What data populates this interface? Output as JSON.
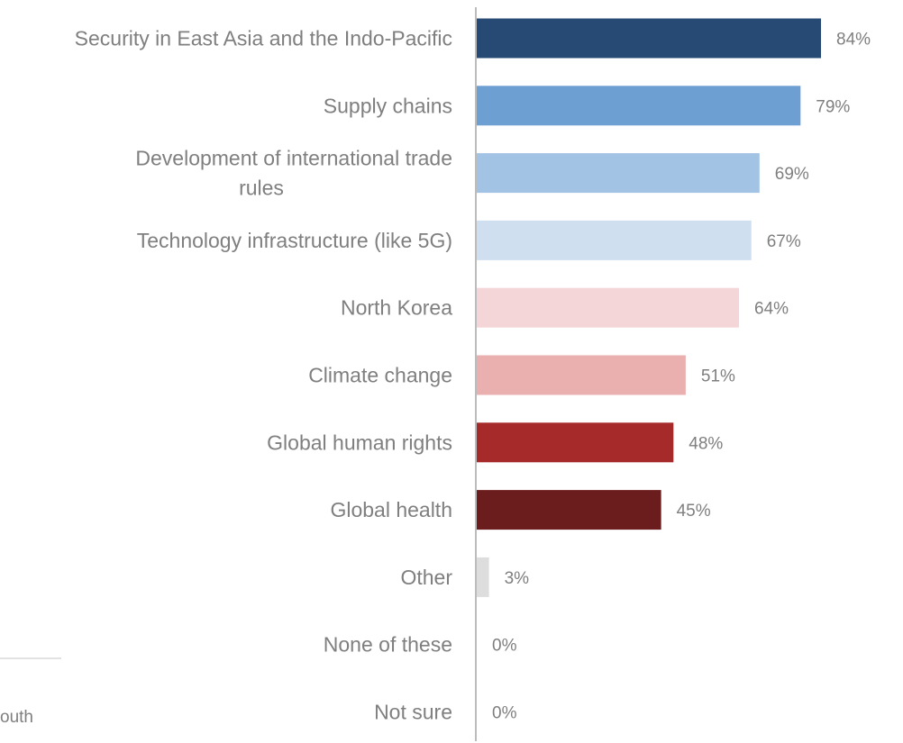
{
  "chart_data": {
    "type": "bar",
    "orientation": "horizontal",
    "title": "",
    "xlabel": "",
    "ylabel": "",
    "categories": [
      [
        "Security in East Asia and the Indo-Pacific"
      ],
      [
        "Supply chains"
      ],
      [
        "Development of international trade",
        "rules"
      ],
      [
        "Technology infrastructure (like 5G)"
      ],
      [
        "North Korea"
      ],
      [
        "Climate change"
      ],
      [
        "Global human rights"
      ],
      [
        "Global health"
      ],
      [
        "Other"
      ],
      [
        "None of these"
      ],
      [
        "Not sure"
      ]
    ],
    "values": [
      84,
      79,
      69,
      67,
      64,
      51,
      48,
      45,
      3,
      0,
      0
    ],
    "value_labels": [
      "84%",
      "79%",
      "69%",
      "67%",
      "64%",
      "51%",
      "48%",
      "45%",
      "3%",
      "0%",
      "0%"
    ],
    "colors": [
      "#264a73",
      "#6e9fd2",
      "#a3c3e4",
      "#d0dff0",
      "#f4d6d8",
      "#eab0b0",
      "#a62a2a",
      "#6b1c1c",
      "#dddddd",
      "#dddddd",
      "#dddddd"
    ],
    "xlim": [
      0,
      100
    ],
    "grid": false,
    "legend": "none"
  },
  "fragments": {
    "partial_footnote": "outh"
  },
  "colors": {
    "text": "#7f7f7f",
    "axis": "#a6a6a6",
    "divider": "#d9d9d9"
  }
}
